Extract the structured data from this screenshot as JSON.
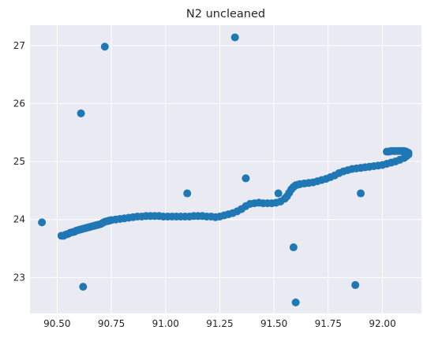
{
  "chart_data": {
    "type": "scatter",
    "title": "N2 uncleaned",
    "xlabel": "",
    "ylabel": "",
    "xlim": [
      90.375,
      92.18
    ],
    "ylim": [
      22.38,
      27.35
    ],
    "xticks": [
      "90.50",
      "90.75",
      "91.00",
      "91.25",
      "91.50",
      "91.75",
      "92.00"
    ],
    "yticks": [
      "23",
      "24",
      "25",
      "26",
      "27"
    ],
    "grid": true,
    "legend": "none",
    "colors": {
      "background": "#eaeaf2",
      "grid": "#ffffff",
      "points": "#1f77b4",
      "text": "#262626"
    },
    "series": [
      {
        "x": [
          90.52,
          90.53,
          90.54,
          90.55,
          90.56,
          90.57,
          90.58,
          90.59,
          90.6,
          90.61,
          90.62,
          90.63,
          90.64,
          90.65,
          90.66,
          90.67,
          90.68,
          90.69,
          90.7,
          90.71,
          90.72,
          90.73,
          90.74,
          90.75,
          90.77,
          90.79,
          90.81,
          90.83,
          90.85,
          90.87,
          90.89,
          90.91,
          90.93,
          90.95,
          90.97,
          90.99,
          91.01,
          91.03,
          91.05,
          91.07,
          91.09,
          91.11,
          91.13,
          91.15,
          91.17,
          91.19,
          91.21,
          91.23,
          91.25,
          91.27,
          91.29,
          91.31,
          91.33,
          91.35,
          91.37,
          91.39,
          91.41,
          91.43,
          91.45,
          91.47,
          91.49,
          91.51,
          91.53,
          91.55,
          91.56,
          91.57,
          91.58,
          91.59,
          91.6,
          91.61,
          91.62,
          91.64,
          91.66,
          91.68,
          91.7,
          91.72,
          91.74,
          91.76,
          91.78,
          91.8,
          91.82,
          91.84,
          91.86,
          91.88,
          91.9,
          91.92,
          91.94,
          91.96,
          91.98,
          92.0,
          92.02,
          92.04,
          92.06,
          92.08,
          92.1,
          92.11,
          92.12,
          92.12,
          92.11,
          92.1,
          92.09,
          92.08,
          92.07,
          92.06,
          92.05,
          92.04,
          92.03,
          92.02
        ],
        "y": [
          23.72,
          23.72,
          23.74,
          23.75,
          23.77,
          23.78,
          23.79,
          23.81,
          23.82,
          23.83,
          23.84,
          23.85,
          23.86,
          23.87,
          23.88,
          23.89,
          23.9,
          23.91,
          23.92,
          23.94,
          23.96,
          23.97,
          23.98,
          23.99,
          24.0,
          24.01,
          24.02,
          24.03,
          24.04,
          24.05,
          24.05,
          24.06,
          24.06,
          24.06,
          24.06,
          24.05,
          24.05,
          24.05,
          24.05,
          24.05,
          24.05,
          24.05,
          24.06,
          24.06,
          24.06,
          24.05,
          24.05,
          24.04,
          24.05,
          24.07,
          24.09,
          24.11,
          24.14,
          24.18,
          24.23,
          24.27,
          24.28,
          24.29,
          24.28,
          24.28,
          24.28,
          24.29,
          24.31,
          24.36,
          24.4,
          24.46,
          24.52,
          24.56,
          24.59,
          24.6,
          24.61,
          24.62,
          24.63,
          24.64,
          24.66,
          24.68,
          24.7,
          24.73,
          24.76,
          24.8,
          24.83,
          24.85,
          24.87,
          24.88,
          24.89,
          24.9,
          24.91,
          24.92,
          24.93,
          24.94,
          24.96,
          24.98,
          25.0,
          25.03,
          25.06,
          25.09,
          25.12,
          25.15,
          25.17,
          25.18,
          25.18,
          25.18,
          25.18,
          25.18,
          25.18,
          25.18,
          25.17,
          25.17
        ]
      },
      {
        "x": [
          90.43,
          90.61,
          90.62,
          90.72,
          91.1,
          91.32,
          91.37,
          91.52,
          91.59,
          91.6,
          91.875,
          91.9
        ],
        "y": [
          23.95,
          25.83,
          22.84,
          26.98,
          24.45,
          27.14,
          24.71,
          24.45,
          23.52,
          22.57,
          22.87,
          24.45
        ]
      }
    ]
  }
}
